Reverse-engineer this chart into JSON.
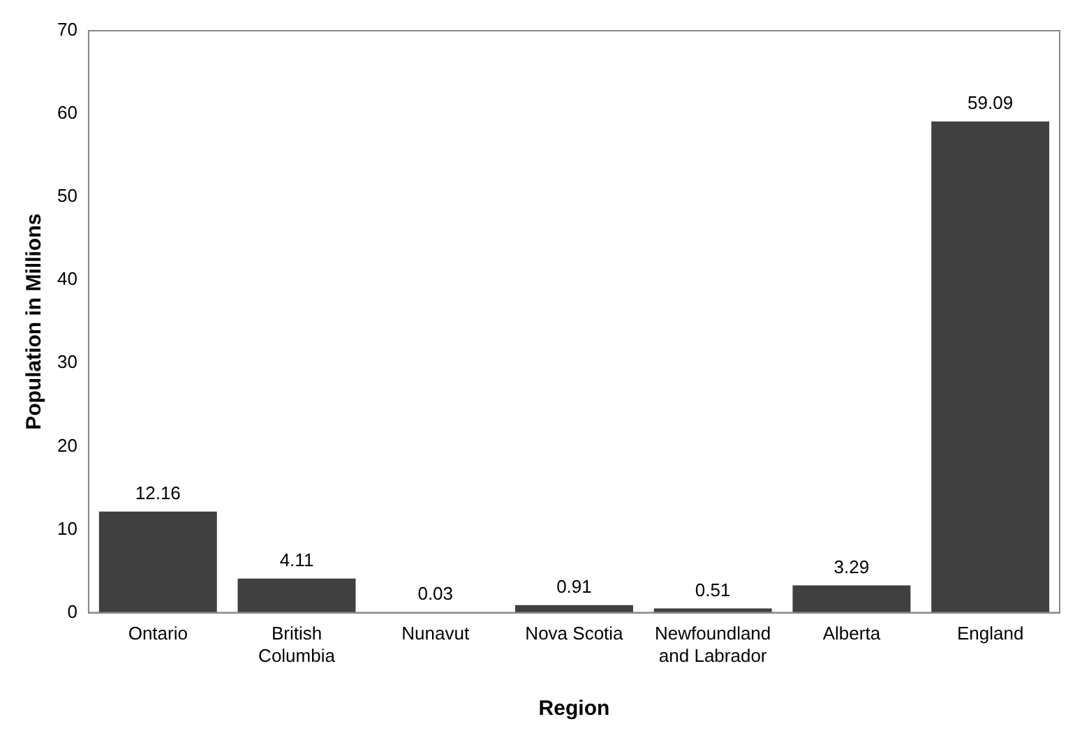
{
  "chart_data": {
    "type": "bar",
    "xlabel": "Region",
    "ylabel": "Population in Millions",
    "categories": [
      "Ontario",
      "British Columbia",
      "Nunavut",
      "Nova Scotia",
      "Newfoundland and Labrador",
      "Alberta",
      "England"
    ],
    "values": [
      12.16,
      4.11,
      0.03,
      0.91,
      0.51,
      3.29,
      59.09
    ],
    "color": "#404040",
    "ylim": [
      0,
      70
    ],
    "yticks": [
      0,
      10,
      20,
      30,
      40,
      50,
      60,
      70
    ],
    "grid": false,
    "legend": false,
    "data_labels": true
  }
}
